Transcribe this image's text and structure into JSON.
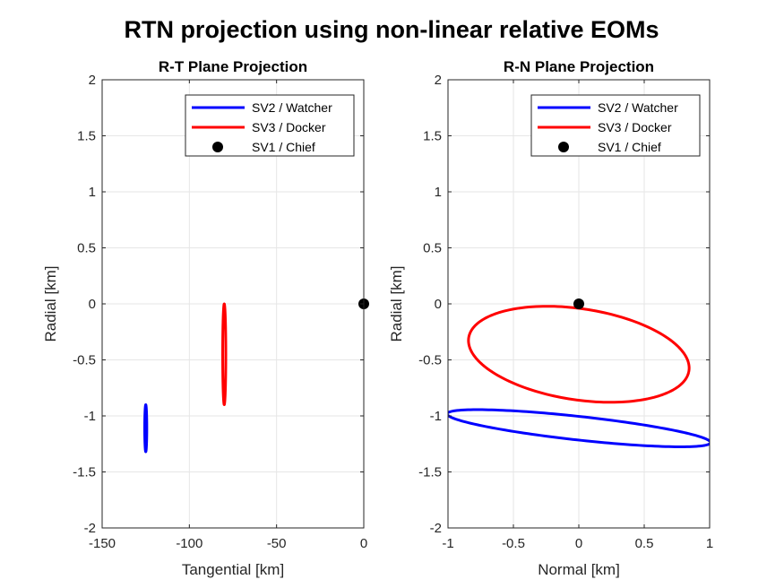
{
  "figure": {
    "title": "RTN projection using non-linear relative EOMs"
  },
  "chart_data": [
    {
      "type": "line",
      "title": "R-T Plane Projection",
      "xlabel": "Tangential [km]",
      "ylabel": "Radial [km]",
      "xlim": [
        -150,
        0
      ],
      "ylim": [
        -2,
        2
      ],
      "xticks": [
        "-150",
        "-100",
        "-50",
        "0"
      ],
      "yticks": [
        "-2",
        "-1.5",
        "-1",
        "-0.5",
        "0",
        "0.5",
        "1",
        "1.5",
        "2"
      ],
      "grid": true,
      "legend_position": "top-right",
      "series": [
        {
          "name": "SV2 / Watcher",
          "color": "#0000ff",
          "shape": "ellipse",
          "center": [
            -125,
            -1.11
          ],
          "x_half_range": 0.6,
          "y_half_range": 0.21
        },
        {
          "name": "SV3 / Docker",
          "color": "#ff0000",
          "shape": "ellipse",
          "center": [
            -80,
            -0.45
          ],
          "x_half_range": 0.9,
          "y_half_range": 0.45
        },
        {
          "name": "SV1 / Chief",
          "color": "#000000",
          "shape": "point",
          "x": [
            0
          ],
          "y": [
            0
          ]
        }
      ]
    },
    {
      "type": "line",
      "title": "R-N Plane Projection",
      "xlabel": "Normal [km]",
      "ylabel": "Radial [km]",
      "xlim": [
        -1,
        1
      ],
      "ylim": [
        -2,
        2
      ],
      "xticks": [
        "-1",
        "-0.5",
        "0",
        "0.5",
        "1"
      ],
      "yticks": [
        "-2",
        "-1.5",
        "-1",
        "-0.5",
        "0",
        "0.5",
        "1",
        "1.5",
        "2"
      ],
      "grid": true,
      "legend_position": "top-right",
      "series": [
        {
          "name": "SV2 / Watcher",
          "color": "#0000ff",
          "shape": "ellipse",
          "center": [
            0,
            -1.11
          ],
          "semi_major": 1.015,
          "semi_minor": 0.105,
          "tilt_deg": -7.3
        },
        {
          "name": "SV3 / Docker",
          "color": "#ff0000",
          "shape": "ellipse",
          "center": [
            0,
            -0.45
          ],
          "semi_major": 0.855,
          "semi_minor": 0.405,
          "tilt_deg": -10.7
        },
        {
          "name": "SV1 / Chief",
          "color": "#000000",
          "shape": "point",
          "x": [
            0
          ],
          "y": [
            0
          ]
        }
      ]
    }
  ]
}
